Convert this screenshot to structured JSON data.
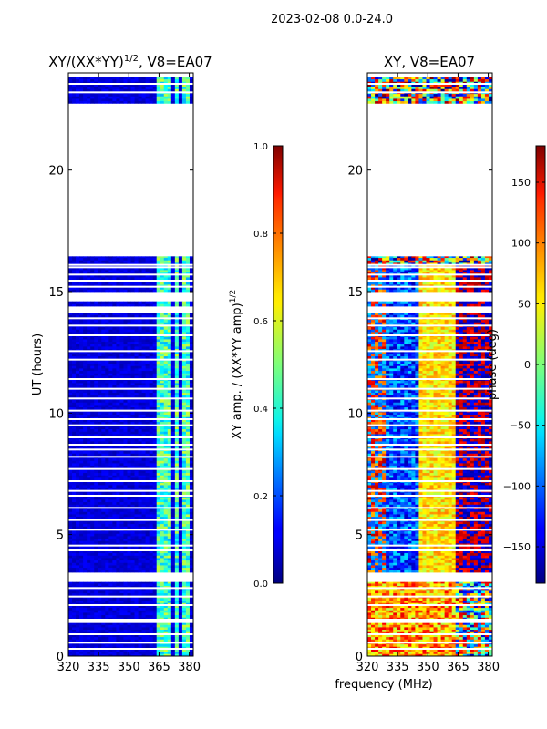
{
  "chart_data": [
    {
      "id": "amp",
      "type": "heatmap",
      "title": "XY/(XX*YY)",
      "title_sup": "1/2",
      "title_suffix": ", V8=EA07",
      "xlim": [
        320,
        382
      ],
      "ylim": [
        0,
        24
      ],
      "xticks": [
        "320",
        "335",
        "350",
        "365",
        "380"
      ],
      "xtick_values": [
        320,
        335,
        350,
        365,
        380
      ],
      "yticks": [
        "0",
        "5",
        "10",
        "15",
        "20"
      ],
      "ytick_values": [
        0,
        5,
        10,
        15,
        20
      ],
      "ylabel": "UT (hours)",
      "colorbar": {
        "colormap": "jet",
        "range": [
          0.0,
          1.0
        ],
        "ticks": [
          "0.0",
          "0.2",
          "0.4",
          "0.6",
          "0.8",
          "1.0"
        ],
        "tick_values": [
          0.0,
          0.2,
          0.4,
          0.6,
          0.8,
          1.0
        ],
        "label": "XY amp. / (XX*YY amp)",
        "label_sup": "1/2"
      },
      "data_blocks_hours": [
        [
          0,
          3.05
        ],
        [
          3.45,
          14.1
        ],
        [
          14.4,
          14.6
        ],
        [
          15.0,
          16.45
        ],
        [
          22.75,
          23.85
        ]
      ],
      "flagged_hours": [
        0.3,
        0.55,
        0.9,
        1.4,
        1.5,
        2.1,
        2.45,
        2.8,
        4.35,
        4.55,
        5.2,
        5.6,
        6.1,
        6.6,
        6.8,
        7.2,
        7.7,
        8.2,
        8.5,
        8.7,
        9.0,
        9.5,
        9.75,
        10.1,
        10.6,
        11.0,
        11.4,
        12.2,
        12.55,
        13.2,
        13.6,
        13.9,
        15.2,
        15.45,
        15.7,
        16.0,
        16.1,
        23.2,
        23.55
      ],
      "bright_band_mhz": [
        [
          364,
          371
        ],
        [
          373,
          375
        ],
        [
          377,
          381
        ]
      ]
    },
    {
      "id": "phase",
      "type": "heatmap",
      "title": "XY, V8=EA07",
      "xlim": [
        320,
        382
      ],
      "ylim": [
        0,
        24
      ],
      "xticks": [
        "320",
        "335",
        "350",
        "365",
        "380"
      ],
      "xtick_values": [
        320,
        335,
        350,
        365,
        380
      ],
      "yticks": [
        "0",
        "5",
        "10",
        "15",
        "20"
      ],
      "ytick_values": [
        0,
        5,
        10,
        15,
        20
      ],
      "xlabel": "frequency (MHz)",
      "colorbar": {
        "colormap": "jet",
        "range": [
          -180,
          180
        ],
        "ticks": [
          "−150",
          "−100",
          "−50",
          "0",
          "50",
          "100",
          "150"
        ],
        "tick_values": [
          -150,
          -100,
          -50,
          0,
          50,
          100,
          150
        ],
        "label": "phase (deg)"
      },
      "data_blocks_hours": [
        [
          0,
          3.05
        ],
        [
          3.45,
          14.1
        ],
        [
          14.4,
          14.6
        ],
        [
          15.0,
          16.45
        ],
        [
          22.75,
          23.85
        ]
      ],
      "flagged_hours": [
        0.3,
        0.55,
        0.9,
        1.4,
        1.5,
        2.1,
        2.45,
        2.8,
        4.35,
        4.55,
        5.2,
        5.6,
        6.1,
        6.6,
        6.8,
        7.2,
        7.7,
        8.2,
        8.5,
        8.7,
        9.0,
        9.5,
        9.75,
        10.1,
        10.6,
        11.0,
        11.4,
        12.2,
        12.55,
        13.2,
        13.6,
        13.9,
        15.2,
        15.45,
        15.7,
        16.0,
        16.1,
        23.2,
        23.55
      ]
    }
  ],
  "suptitle": "2023-02-08 0.0-24.0"
}
